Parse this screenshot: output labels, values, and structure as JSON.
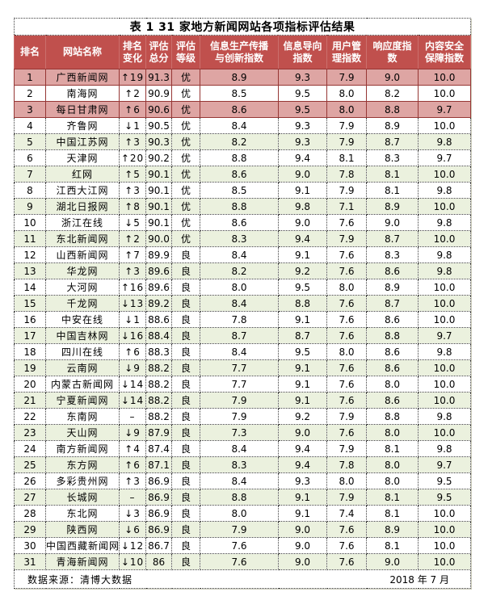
{
  "title": "表 1 31 家地方新闻网站各项指标评估结果",
  "columns": [
    {
      "key": "rank",
      "label": "排名"
    },
    {
      "key": "site_name",
      "label": "网站名称"
    },
    {
      "key": "rank_change",
      "label": "排名\n变化"
    },
    {
      "key": "total_score",
      "label": "评估\n总分"
    },
    {
      "key": "grade",
      "label": "评估\n等级"
    },
    {
      "key": "idx_info_production_innovation",
      "label": "信息生产传播\n与创新指数"
    },
    {
      "key": "idx_info_orientation",
      "label": "信息导向\n指数"
    },
    {
      "key": "idx_user_management",
      "label": "用户管\n理指数"
    },
    {
      "key": "idx_responsiveness",
      "label": "响应度指\n数"
    },
    {
      "key": "idx_content_safety",
      "label": "内容安全\n保障指数"
    }
  ],
  "rows": [
    [
      "1",
      "广西新闻网",
      "↑19",
      "91.3",
      "优",
      "8.9",
      "9.3",
      "7.9",
      "9.0",
      "10.0"
    ],
    [
      "2",
      "南海网",
      "↑2",
      "90.9",
      "优",
      "8.5",
      "9.5",
      "8.0",
      "8.2",
      "10.0"
    ],
    [
      "3",
      "每日甘肃网",
      "↑6",
      "90.6",
      "优",
      "8.6",
      "9.5",
      "8.0",
      "8.8",
      "9.7"
    ],
    [
      "4",
      "齐鲁网",
      "↓1",
      "90.5",
      "优",
      "8.4",
      "9.3",
      "7.9",
      "8.9",
      "10.0"
    ],
    [
      "5",
      "中国江苏网",
      "↑3",
      "90.3",
      "优",
      "8.2",
      "9.3",
      "7.9",
      "8.7",
      "9.8"
    ],
    [
      "6",
      "天津网",
      "↑20",
      "90.2",
      "优",
      "8.8",
      "9.4",
      "8.1",
      "8.3",
      "9.7"
    ],
    [
      "7",
      "红网",
      "↑5",
      "90.1",
      "优",
      "8.6",
      "9.0",
      "7.8",
      "8.1",
      "10.0"
    ],
    [
      "8",
      "江西大江网",
      "↑3",
      "90.1",
      "优",
      "8.5",
      "9.1",
      "7.9",
      "8.1",
      "9.8"
    ],
    [
      "9",
      "湖北日报网",
      "↑8",
      "90.1",
      "优",
      "8.8",
      "9.8",
      "7.1",
      "8.9",
      "10.0"
    ],
    [
      "10",
      "浙江在线",
      "↓5",
      "90.1",
      "优",
      "8.6",
      "9.0",
      "7.6",
      "9.0",
      "9.8"
    ],
    [
      "11",
      "东北新闻网",
      "↑2",
      "90.0",
      "优",
      "8.3",
      "9.4",
      "7.9",
      "8.7",
      "10.0"
    ],
    [
      "12",
      "山西新闻网",
      "↑7",
      "89.9",
      "良",
      "8.4",
      "9.1",
      "7.6",
      "8.3",
      "9.8"
    ],
    [
      "13",
      "华龙网",
      "↑3",
      "89.6",
      "良",
      "8.2",
      "9.2",
      "7.6",
      "8.6",
      "9.8"
    ],
    [
      "14",
      "大河网",
      "↑16",
      "89.6",
      "良",
      "8.0",
      "9.5",
      "8.0",
      "8.9",
      "10.0"
    ],
    [
      "15",
      "千龙网",
      "↓13",
      "89.2",
      "良",
      "8.4",
      "8.8",
      "7.6",
      "8.7",
      "10.0"
    ],
    [
      "16",
      "中安在线",
      "↓1",
      "88.6",
      "良",
      "7.8",
      "9.1",
      "7.6",
      "8.6",
      "10.0"
    ],
    [
      "17",
      "中国吉林网",
      "↓16",
      "88.4",
      "良",
      "8.7",
      "8.7",
      "7.6",
      "8.8",
      "9.7"
    ],
    [
      "18",
      "四川在线",
      "↑6",
      "88.3",
      "良",
      "8.4",
      "9.5",
      "8.0",
      "8.6",
      "9.8"
    ],
    [
      "19",
      "云南网",
      "↓9",
      "88.2",
      "良",
      "7.7",
      "9.1",
      "7.6",
      "8.6",
      "10.0"
    ],
    [
      "20",
      "内蒙古新闻网",
      "↓14",
      "88.2",
      "良",
      "7.7",
      "9.1",
      "7.6",
      "8.0",
      "10.0"
    ],
    [
      "21",
      "宁夏新闻网",
      "↓14",
      "88.2",
      "良",
      "7.9",
      "9.1",
      "7.6",
      "8.6",
      "10.0"
    ],
    [
      "22",
      "东南网",
      "–",
      "88.2",
      "良",
      "7.9",
      "9.2",
      "7.9",
      "8.8",
      "9.8"
    ],
    [
      "23",
      "天山网",
      "↓9",
      "87.9",
      "良",
      "7.3",
      "9.0",
      "7.6",
      "8.0",
      "10.0"
    ],
    [
      "24",
      "南方新闻网",
      "↑4",
      "87.4",
      "良",
      "8.4",
      "9.4",
      "7.9",
      "8.1",
      "9.8"
    ],
    [
      "25",
      "东方网",
      "↑6",
      "87.1",
      "良",
      "8.3",
      "9.4",
      "7.8",
      "8.0",
      "9.7"
    ],
    [
      "26",
      "多彩贵州网",
      "↑3",
      "86.9",
      "良",
      "8.4",
      "9.3",
      "8.0",
      "8.0",
      "9.5"
    ],
    [
      "27",
      "长城网",
      "–",
      "86.9",
      "良",
      "8.8",
      "9.1",
      "7.9",
      "8.1",
      "9.5"
    ],
    [
      "28",
      "东北网",
      "↓3",
      "86.9",
      "良",
      "8.0",
      "9.1",
      "7.4",
      "8.1",
      "10.0"
    ],
    [
      "29",
      "陕西网",
      "↓6",
      "86.9",
      "良",
      "7.9",
      "9.0",
      "7.6",
      "8.9",
      "10.0"
    ],
    [
      "30",
      "中国西藏新闻网",
      "↓12",
      "86.7",
      "良",
      "7.6",
      "9.0",
      "7.6",
      "8.1",
      "10.0"
    ],
    [
      "31",
      "青海新闻网",
      "↓10",
      "86",
      "良",
      "7.6",
      "9.0",
      "7.6",
      "9.0",
      "10.0"
    ]
  ],
  "footer": {
    "source": "数据来源：清博大数据",
    "date": "2018 年 7 月"
  },
  "colors": {
    "header_bg": "#C0504D",
    "header_text": "#FFFFFF",
    "highlight_row_bg": "#DEA5A3",
    "highlight_border": "#963634",
    "alt_row_bg": "#EBF1DE",
    "grid_border": "#3D3D3D"
  }
}
